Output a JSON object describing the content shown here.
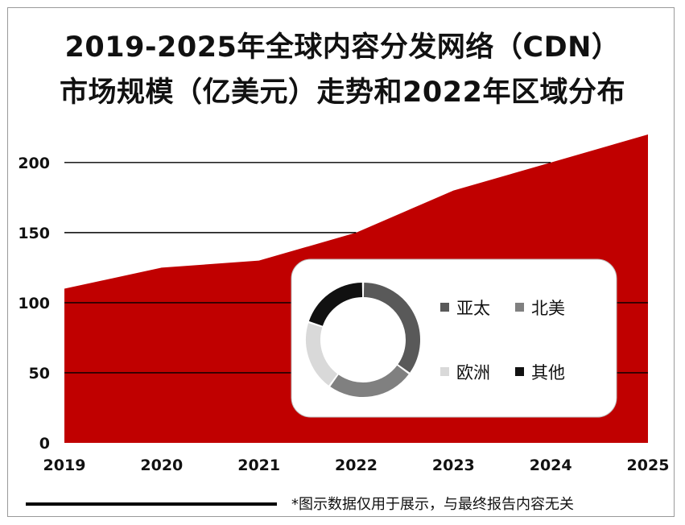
{
  "title_line1": "2019-2025年全球内容分发网络（CDN）",
  "title_line2": "市场规模（亿美元）走势和2022年区域分布",
  "footer_note": "*图示数据仅用于展示，与最终报告内容无关",
  "colors": {
    "area": "#c00000",
    "donut": [
      "#595959",
      "#808080",
      "#d9d9d9",
      "#111111"
    ]
  },
  "chart_data": [
    {
      "type": "area",
      "title": "2019-2025年全球内容分发网络（CDN）市场规模（亿美元）走势和2022年区域分布",
      "x": [
        "2019",
        "2020",
        "2021",
        "2022",
        "2023",
        "2024",
        "2025"
      ],
      "values": [
        110,
        125,
        130,
        150,
        180,
        200,
        220
      ],
      "ylim": [
        0,
        220
      ],
      "yticks": [
        0,
        50,
        100,
        150,
        200
      ],
      "grid": true
    },
    {
      "type": "pie",
      "style": "donut",
      "categories": [
        "亚太",
        "北美",
        "欧洲",
        "其他"
      ],
      "values": [
        35,
        25,
        20,
        20
      ],
      "legend": "right"
    }
  ]
}
